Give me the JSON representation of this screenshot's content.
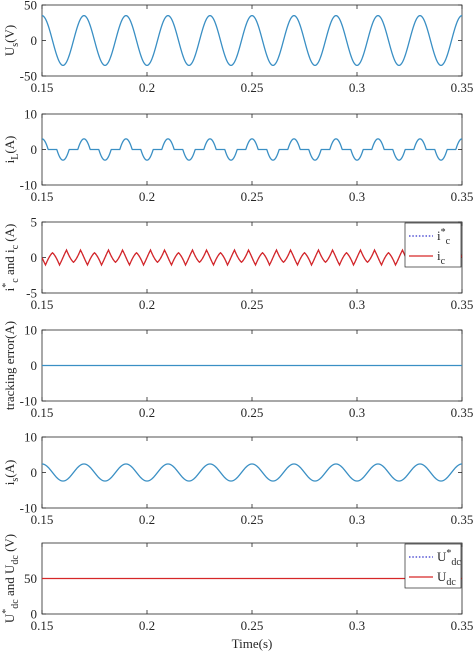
{
  "chart_data": [
    {
      "type": "line",
      "ylabel": "U",
      "ylabel_sub": "s",
      "ylabel_rest": "(V)",
      "xlim": [
        0.15,
        0.35
      ],
      "ylim": [
        -50,
        50
      ],
      "xticks": [
        "0.15",
        "0.2",
        "0.25",
        "0.3",
        "0.35"
      ],
      "yticks": [
        "50",
        "0",
        "-50"
      ],
      "ytick_values": [
        50,
        0,
        -50
      ],
      "series": [
        {
          "color": "#3a8fc4",
          "style": "solid",
          "shape": "sine",
          "amplitude": 35,
          "frequency_hz": 50,
          "phase_deg": -90
        }
      ]
    },
    {
      "type": "line",
      "ylabel": "i",
      "ylabel_sub": "L",
      "ylabel_rest": "(A)",
      "xlim": [
        0.15,
        0.35
      ],
      "ylim": [
        -10,
        10
      ],
      "xticks": [
        "0.15",
        "0.2",
        "0.25",
        "0.3",
        "0.35"
      ],
      "yticks": [
        "10",
        "0",
        "-10"
      ],
      "ytick_values": [
        10,
        0,
        -10
      ],
      "series": [
        {
          "color": "#3a8fc4",
          "style": "solid",
          "shape": "rectifier_current",
          "amplitude": 3,
          "conduction_threshold": 0.6,
          "frequency_hz": 50,
          "phase_deg": -90
        }
      ]
    },
    {
      "type": "line",
      "ylabel": "i",
      "ylabel_sup": "*",
      "ylabel_sub": "c",
      "ylabel_mid": " and i",
      "ylabel_sub2": "c",
      "ylabel_rest": " (A)",
      "xlim": [
        0.15,
        0.35
      ],
      "ylim": [
        -5,
        5
      ],
      "xticks": [
        "0.15",
        "0.2",
        "0.25",
        "0.3",
        "0.35"
      ],
      "yticks": [
        "5",
        "0",
        "-5"
      ],
      "ytick_values": [
        5,
        0,
        -5
      ],
      "legend": {
        "position": "top-right",
        "entries": [
          {
            "text": "i",
            "sup": "*",
            "sub": "c",
            "color": "#3333cc",
            "style": "dotted"
          },
          {
            "text": "i",
            "sub": "c",
            "color": "#d62728",
            "style": "solid"
          }
        ]
      },
      "series": [
        {
          "color": "#3333cc",
          "style": "dotted",
          "shape": "harmonic_current",
          "amplitude": 1.3
        },
        {
          "color": "#d62728",
          "style": "solid",
          "shape": "harmonic_current",
          "amplitude": 1.3
        }
      ]
    },
    {
      "type": "line",
      "ylabel": "tracking error(A)",
      "xlim": [
        0.15,
        0.35
      ],
      "ylim": [
        -10,
        10
      ],
      "xticks": [
        "0.15",
        "0.2",
        "0.25",
        "0.3",
        "0.35"
      ],
      "yticks": [
        "10",
        "0",
        "-10"
      ],
      "ytick_values": [
        10,
        0,
        -10
      ],
      "series": [
        {
          "color": "#3a8fc4",
          "style": "solid",
          "shape": "constant",
          "value": 0
        }
      ]
    },
    {
      "type": "line",
      "ylabel": "i",
      "ylabel_sub": "s",
      "ylabel_rest": "(A)",
      "xlim": [
        0.15,
        0.35
      ],
      "ylim": [
        -10,
        10
      ],
      "xticks": [
        "0.15",
        "0.2",
        "0.25",
        "0.3",
        "0.35"
      ],
      "yticks": [
        "10",
        "0",
        "-10"
      ],
      "ytick_values": [
        10,
        0,
        -10
      ],
      "series": [
        {
          "color": "#3a8fc4",
          "style": "solid",
          "shape": "sine",
          "amplitude": 2.4,
          "frequency_hz": 50,
          "phase_deg": -90
        }
      ]
    },
    {
      "type": "line",
      "ylabel": "U",
      "ylabel_sup": "*",
      "ylabel_sub": "dc",
      "ylabel_mid": " and U",
      "ylabel_sub2": "dc",
      "ylabel_rest": " (V)",
      "xlim": [
        0.15,
        0.35
      ],
      "ylim": [
        0,
        100
      ],
      "xticks": [
        "0.15",
        "0.2",
        "0.25",
        "0.3",
        "0.35"
      ],
      "yticks": [
        "50",
        "0"
      ],
      "ytick_values": [
        50,
        0
      ],
      "xlabel": "Time(s)",
      "legend": {
        "position": "top-right",
        "entries": [
          {
            "text": "U",
            "sup": "*",
            "sub": "dc",
            "color": "#3333cc",
            "style": "dotted"
          },
          {
            "text": "U",
            "sub": "dc",
            "color": "#d62728",
            "style": "solid"
          }
        ]
      },
      "series": [
        {
          "color": "#3333cc",
          "style": "dotted",
          "shape": "constant",
          "value": 50
        },
        {
          "color": "#d62728",
          "style": "solid",
          "shape": "constant",
          "value": 50
        }
      ]
    }
  ]
}
